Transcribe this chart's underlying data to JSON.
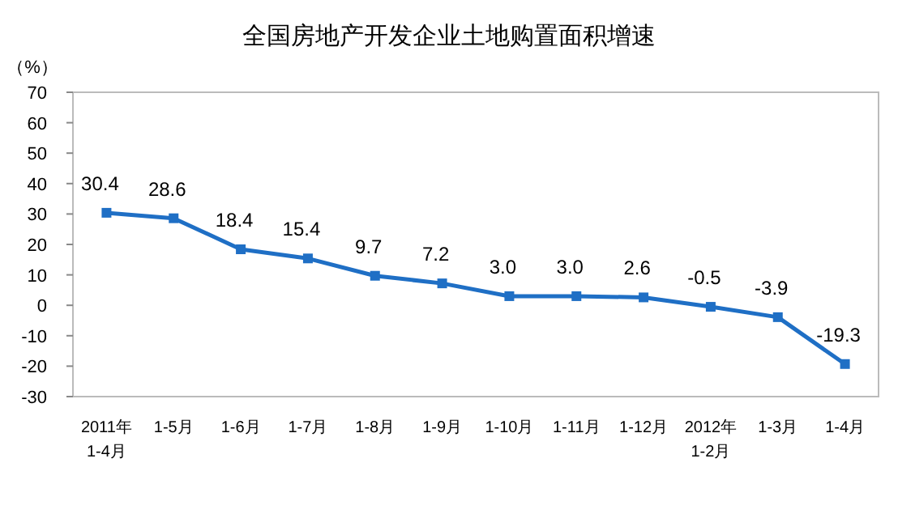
{
  "chart_data": {
    "type": "line",
    "title": "全国房地产开发企业土地购置面积增速",
    "ylabel": "（%）",
    "categories": [
      "2011年\n1-4月",
      "1-5月",
      "1-6月",
      "1-7月",
      "1-8月",
      "1-9月",
      "1-10月",
      "1-11月",
      "1-12月",
      "2012年\n1-2月",
      "1-3月",
      "1-4月"
    ],
    "series": [
      {
        "color": "#1f6fc5",
        "values": [
          30.4,
          28.6,
          18.4,
          15.4,
          9.7,
          7.2,
          3.0,
          3.0,
          2.6,
          -0.5,
          -3.9,
          -19.3
        ],
        "value_labels": [
          "30.4",
          "28.6",
          "18.4",
          "15.4",
          "9.7",
          "7.2",
          "3.0",
          "3.0",
          "2.6",
          "-0.5",
          "-3.9",
          "-19.3"
        ]
      }
    ],
    "ylim": [
      -30,
      70
    ],
    "yticks": [
      -30,
      -20,
      -10,
      0,
      10,
      20,
      30,
      40,
      50,
      60,
      70
    ],
    "marker": "square",
    "line_style": "solid",
    "grid": false
  }
}
